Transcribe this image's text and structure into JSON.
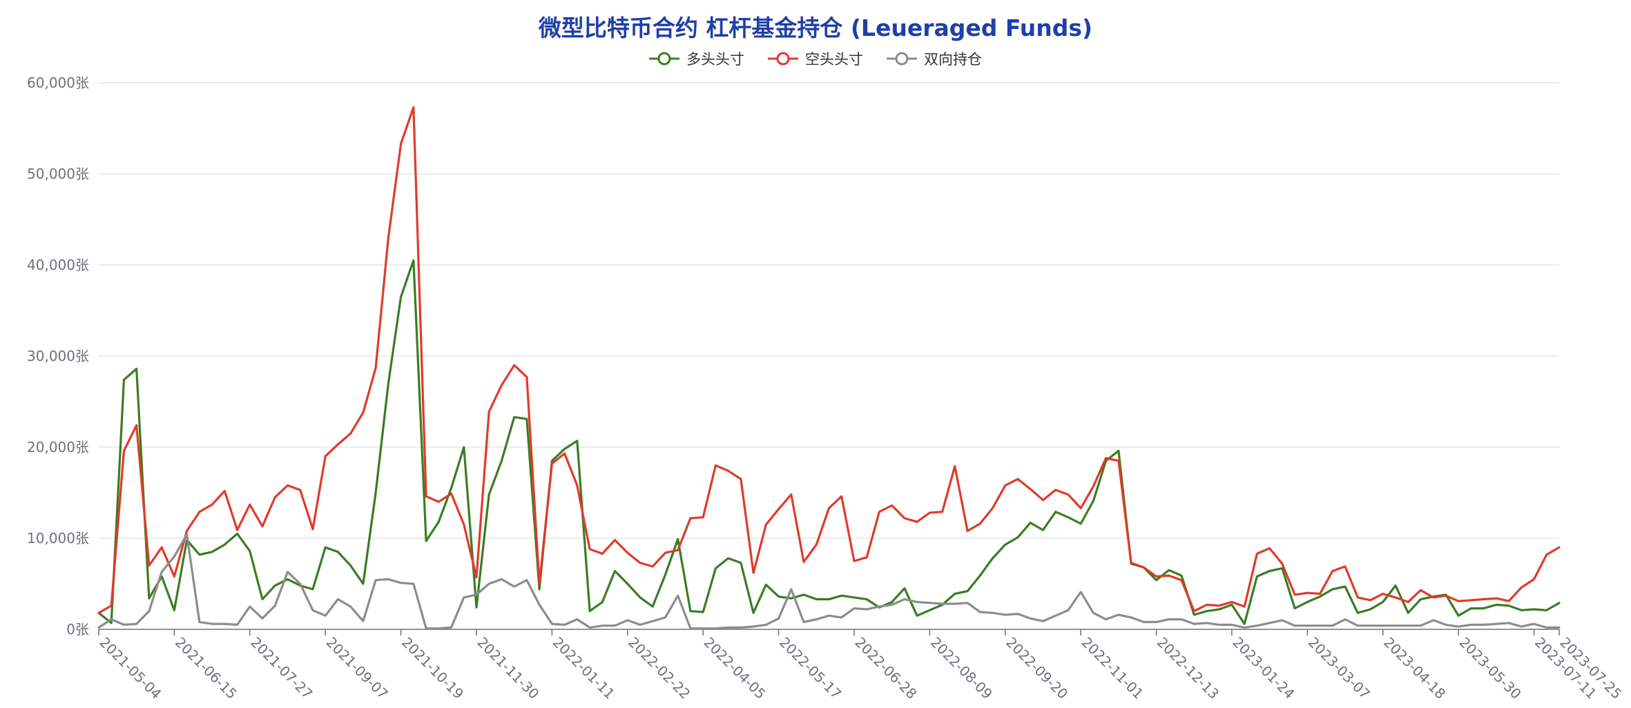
{
  "title": "微型比特币合约 杠杆基金持仓 (Leueraged Funds)",
  "chart_data": {
    "type": "line",
    "title": "微型比特币合约 杠杆基金持仓 (Leueraged Funds)",
    "ylim": [
      0,
      60000
    ],
    "y_ticks": [
      0,
      10000,
      20000,
      30000,
      40000,
      50000,
      60000
    ],
    "y_tick_labels": [
      "0张",
      "10,000张",
      "20,000张",
      "30,000张",
      "40,000张",
      "50,000张",
      "60,000张"
    ],
    "grid": true,
    "legend_position": "top-center",
    "x": [
      "2021-05-04",
      "2021-05-11",
      "2021-05-18",
      "2021-05-25",
      "2021-06-01",
      "2021-06-08",
      "2021-06-15",
      "2021-06-22",
      "2021-06-29",
      "2021-07-06",
      "2021-07-13",
      "2021-07-20",
      "2021-07-27",
      "2021-08-03",
      "2021-08-10",
      "2021-08-17",
      "2021-08-24",
      "2021-08-31",
      "2021-09-07",
      "2021-09-14",
      "2021-09-21",
      "2021-09-28",
      "2021-10-05",
      "2021-10-12",
      "2021-10-19",
      "2021-10-26",
      "2021-11-02",
      "2021-11-09",
      "2021-11-16",
      "2021-11-23",
      "2021-11-30",
      "2021-12-07",
      "2021-12-14",
      "2021-12-21",
      "2021-12-28",
      "2022-01-04",
      "2022-01-11",
      "2022-01-18",
      "2022-01-25",
      "2022-02-01",
      "2022-02-08",
      "2022-02-15",
      "2022-02-22",
      "2022-03-01",
      "2022-03-08",
      "2022-03-15",
      "2022-03-22",
      "2022-03-29",
      "2022-04-05",
      "2022-04-12",
      "2022-04-19",
      "2022-04-26",
      "2022-05-03",
      "2022-05-10",
      "2022-05-17",
      "2022-05-24",
      "2022-05-31",
      "2022-06-07",
      "2022-06-14",
      "2022-06-21",
      "2022-06-28",
      "2022-07-05",
      "2022-07-12",
      "2022-07-19",
      "2022-07-26",
      "2022-08-02",
      "2022-08-09",
      "2022-08-16",
      "2022-08-23",
      "2022-08-30",
      "2022-09-06",
      "2022-09-13",
      "2022-09-20",
      "2022-09-27",
      "2022-10-04",
      "2022-10-11",
      "2022-10-18",
      "2022-10-25",
      "2022-11-01",
      "2022-11-08",
      "2022-11-15",
      "2022-11-22",
      "2022-11-29",
      "2022-12-06",
      "2022-12-13",
      "2022-12-20",
      "2022-12-27",
      "2023-01-03",
      "2023-01-10",
      "2023-01-17",
      "2023-01-24",
      "2023-01-31",
      "2023-02-07",
      "2023-02-14",
      "2023-02-21",
      "2023-02-28",
      "2023-03-07",
      "2023-03-14",
      "2023-03-21",
      "2023-03-28",
      "2023-04-04",
      "2023-04-11",
      "2023-04-18",
      "2023-04-25",
      "2023-05-02",
      "2023-05-09",
      "2023-05-16",
      "2023-05-23",
      "2023-05-30",
      "2023-06-06",
      "2023-06-13",
      "2023-06-20",
      "2023-06-27",
      "2023-07-04",
      "2023-07-11",
      "2023-07-18",
      "2023-07-25"
    ],
    "x_tick_labels": [
      "2021-05-04",
      "2021-06-15",
      "2021-07-27",
      "2021-09-07",
      "2021-10-19",
      "2021-11-30",
      "2022-01-11",
      "2022-02-22",
      "2022-04-05",
      "2022-05-17",
      "2022-06-28",
      "2022-08-09",
      "2022-09-20",
      "2022-11-01",
      "2022-12-13",
      "2023-01-24",
      "2023-03-07",
      "2023-04-18",
      "2023-05-30",
      "2023-07-11",
      "2023-07-25"
    ],
    "series": [
      {
        "name": "多头头寸",
        "color": "#3a7d22",
        "values": [
          1800,
          700,
          27400,
          28600,
          3400,
          5800,
          2100,
          9800,
          8200,
          8500,
          9300,
          10500,
          8600,
          3300,
          4800,
          5500,
          4800,
          4400,
          9000,
          8500,
          7000,
          5000,
          15000,
          27000,
          36500,
          40500,
          9700,
          11800,
          15500,
          20000,
          2400,
          14800,
          18500,
          23300,
          23100,
          4400,
          18500,
          19800,
          20700,
          2000,
          3000,
          6400,
          5000,
          3500,
          2500,
          6000,
          9900,
          2000,
          1900,
          6700,
          7800,
          7300,
          1800,
          4900,
          3600,
          3400,
          3800,
          3300,
          3300,
          3700,
          3500,
          3300,
          2400,
          3000,
          4500,
          1500,
          2100,
          2700,
          3900,
          4200,
          5900,
          7800,
          9300,
          10100,
          11700,
          10900,
          12900,
          12300,
          11600,
          14100,
          18500,
          19600,
          7200,
          6800,
          5400,
          6500,
          5900,
          1600,
          2000,
          2200,
          2700,
          600,
          5800,
          6400,
          6700,
          2300,
          3000,
          3600,
          4400,
          4700,
          1800,
          2200,
          3000,
          4800,
          1800,
          3300,
          3600,
          3800,
          1500,
          2300,
          2300,
          2700,
          2600,
          2100,
          2200,
          2100,
          2900
        ]
      },
      {
        "name": "空头头寸",
        "color": "#e03a2a",
        "values": [
          1800,
          2600,
          19600,
          22400,
          7000,
          9000,
          5800,
          10800,
          12900,
          13700,
          15200,
          10900,
          13700,
          11300,
          14500,
          15800,
          15300,
          11000,
          19000,
          20300,
          21500,
          23800,
          28700,
          43000,
          53300,
          57300,
          14600,
          14000,
          14900,
          11500,
          5700,
          23900,
          26800,
          29000,
          27700,
          5000,
          18200,
          19300,
          15800,
          8800,
          8300,
          9800,
          8400,
          7300,
          6900,
          8400,
          8700,
          12200,
          12300,
          18000,
          17400,
          16500,
          6200,
          11500,
          13200,
          14800,
          7400,
          9300,
          13300,
          14600,
          7500,
          7900,
          12900,
          13600,
          12200,
          11800,
          12800,
          12900,
          17900,
          10800,
          11600,
          13300,
          15800,
          16500,
          15400,
          14200,
          15300,
          14800,
          13300,
          15700,
          18800,
          18500,
          7300,
          6800,
          5800,
          5900,
          5400,
          2000,
          2700,
          2600,
          3000,
          2500,
          8300,
          8900,
          7200,
          3800,
          4000,
          3900,
          6400,
          6900,
          3500,
          3200,
          3900,
          3500,
          3000,
          4300,
          3500,
          3700,
          3100,
          3200,
          3300,
          3400,
          3100,
          4600,
          5500,
          8200,
          9000
        ]
      },
      {
        "name": "双向持仓",
        "color": "#8c8c8c",
        "values": [
          200,
          1100,
          500,
          600,
          2000,
          6300,
          8000,
          10400,
          800,
          600,
          600,
          500,
          2500,
          1200,
          2600,
          6300,
          5000,
          2100,
          1500,
          3300,
          2500,
          900,
          5400,
          5500,
          5100,
          5000,
          100,
          100,
          200,
          3500,
          3800,
          5000,
          5500,
          4700,
          5400,
          2700,
          600,
          500,
          1100,
          200,
          400,
          400,
          1000,
          500,
          900,
          1300,
          3700,
          100,
          100,
          100,
          200,
          200,
          300,
          500,
          1200,
          4400,
          800,
          1100,
          1500,
          1300,
          2300,
          2200,
          2500,
          2700,
          3300,
          3000,
          2900,
          2800,
          2800,
          2900,
          1900,
          1800,
          1600,
          1700,
          1200,
          900,
          1500,
          2100,
          4100,
          1800,
          1100,
          1600,
          1300,
          800,
          800,
          1100,
          1100,
          600,
          700,
          500,
          500,
          200,
          400,
          700,
          1000,
          400,
          400,
          400,
          400,
          1100,
          400,
          400,
          400,
          400,
          400,
          400,
          1000,
          500,
          300,
          500,
          500,
          600,
          700,
          300,
          600,
          200,
          200
        ]
      }
    ]
  }
}
